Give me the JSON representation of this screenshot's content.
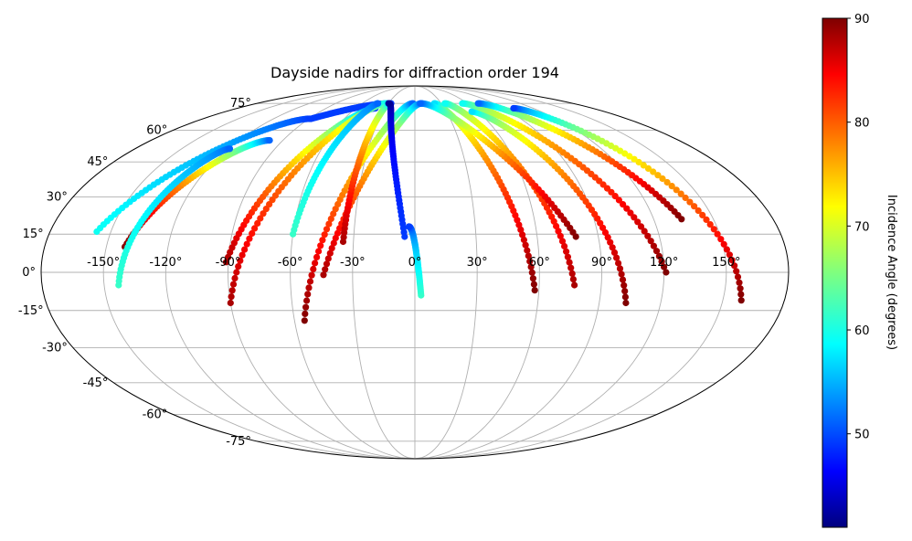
{
  "chart_data": {
    "type": "scatter",
    "projection": "mollweide",
    "title": "Dayside nadirs for diffraction order 194",
    "xlabel": "",
    "ylabel": "",
    "lon_ticks": [
      "-150°",
      "-120°",
      "-90°",
      "-60°",
      "-30°",
      "0°",
      "30°",
      "60°",
      "90°",
      "120°",
      "150°"
    ],
    "lat_ticks": [
      "75°",
      "60°",
      "45°",
      "30°",
      "15°",
      "0°",
      "-15°",
      "-30°",
      "-45°",
      "-60°",
      "-75°"
    ],
    "grid": true,
    "colormap": "jet",
    "colorbar": {
      "label": "Incidence Angle (degrees)",
      "min": 41,
      "max": 90,
      "ticks": [
        "50",
        "60",
        "70",
        "80",
        "90"
      ]
    },
    "tracks": [
      {
        "lon": -157,
        "lat": 16,
        "inc_start": 60,
        "lon_end": -89,
        "lat_end": 66,
        "inc_end": 50,
        "shape": "up"
      },
      {
        "lon": -88,
        "lat": 66,
        "inc_start": 50,
        "lon_end": -27,
        "lat_end": 75,
        "inc_end": 50,
        "shape": "up"
      },
      {
        "lon": -141,
        "lat": 10,
        "inc_start": 90,
        "lon_end": -99,
        "lat_end": 55,
        "inc_end": 52,
        "shape": "up"
      },
      {
        "lon": -143,
        "lat": -5,
        "inc_start": 62,
        "lon_end": -119,
        "lat_end": 51,
        "inc_end": 52,
        "shape": "up"
      },
      {
        "lon": -91,
        "lat": 4,
        "inc_start": 88,
        "lon_end": -40,
        "lat_end": 72,
        "inc_end": 50,
        "shape": "up"
      },
      {
        "lon": -90,
        "lat": -12,
        "inc_start": 88,
        "lon_end": -33,
        "lat_end": 75,
        "inc_end": 60,
        "shape": "up"
      },
      {
        "lon": -60,
        "lat": 15,
        "inc_start": 62,
        "lon_end": -42,
        "lat_end": 75,
        "inc_end": 52,
        "shape": "up"
      },
      {
        "lon": -55,
        "lat": -19,
        "inc_start": 90,
        "lon_end": -2,
        "lat_end": 75,
        "inc_end": 52,
        "shape": "up"
      },
      {
        "lon": -44,
        "lat": -1,
        "inc_start": 88,
        "lon_end": 8,
        "lat_end": 75,
        "inc_end": 52,
        "shape": "up"
      },
      {
        "lon": -35,
        "lat": 12,
        "inc_start": 88,
        "lon_end": -30,
        "lat_end": 75,
        "inc_end": 58,
        "shape": "up"
      },
      {
        "lon": -5,
        "lat": 14,
        "inc_start": 50,
        "lon_end": -30,
        "lat_end": 75,
        "inc_end": 42,
        "shape": "up"
      },
      {
        "lon": 3,
        "lat": -9,
        "inc_start": 62,
        "lon_end": -3,
        "lat_end": 18,
        "inc_end": 50,
        "shape": "up"
      },
      {
        "lon": 58,
        "lat": -7,
        "inc_start": 90,
        "lon_end": 22,
        "lat_end": 75,
        "inc_end": 58,
        "shape": "up"
      },
      {
        "lon": 77,
        "lat": -5,
        "inc_start": 88,
        "lon_end": 34,
        "lat_end": 75,
        "inc_end": 60,
        "shape": "up"
      },
      {
        "lon": 79,
        "lat": 14,
        "inc_start": 90,
        "lon_end": 6,
        "lat_end": 75,
        "inc_end": 52,
        "shape": "up"
      },
      {
        "lon": 103,
        "lat": -12,
        "inc_start": 90,
        "lon_end": 54,
        "lat_end": 70,
        "inc_end": 58,
        "shape": "up"
      },
      {
        "lon": 121,
        "lat": 0,
        "inc_start": 90,
        "lon_end": 54,
        "lat_end": 75,
        "inc_end": 60,
        "shape": "up"
      },
      {
        "lon": 134,
        "lat": 21,
        "inc_start": 90,
        "lon_end": 72,
        "lat_end": 75,
        "inc_end": 52,
        "shape": "up"
      },
      {
        "lon": 159,
        "lat": -11,
        "inc_start": 90,
        "lon_end": 100,
        "lat_end": 72,
        "inc_end": 50,
        "shape": "up"
      }
    ]
  }
}
